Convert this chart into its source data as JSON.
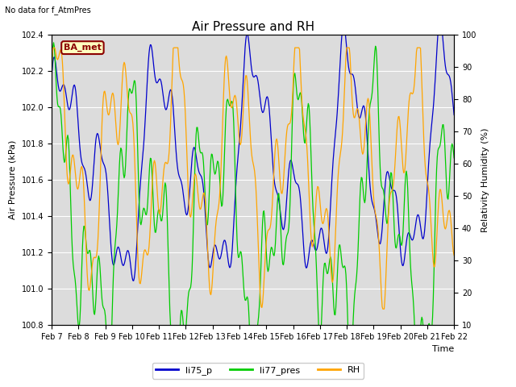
{
  "title": "Air Pressure and RH",
  "note": "No data for f_AtmPres",
  "station_label": "BA_met",
  "ylabel_left": "Air Pressure (kPa)",
  "ylabel_right": "Relativity Humidity (%)",
  "xlabel": "Time",
  "ylim_left": [
    100.8,
    102.4
  ],
  "ylim_right": [
    10,
    100
  ],
  "x_tick_labels": [
    "Feb 7",
    "Feb 8",
    "Feb 9",
    "Feb 10",
    "Feb 11",
    "Feb 12",
    "Feb 13",
    "Feb 14",
    "Feb 15",
    "Feb 16",
    "Feb 17",
    "Feb 18",
    "Feb 19",
    "Feb 20",
    "Feb 21",
    "Feb 22"
  ],
  "color_blue": "#0000CC",
  "color_green": "#00CC00",
  "color_orange": "#FFA500",
  "bg_color": "#DCDCDC",
  "fig_bg_color": "#FFFFFF",
  "legend_entries": [
    "li75_p",
    "li77_pres",
    "RH"
  ],
  "title_fontsize": 11,
  "label_fontsize": 8,
  "tick_fontsize": 7,
  "note_fontsize": 7,
  "station_fontsize": 8,
  "legend_fontsize": 8,
  "n_points": 600
}
